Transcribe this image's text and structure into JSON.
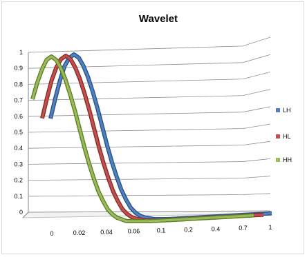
{
  "chart_data": {
    "type": "line",
    "title": "Wavelet",
    "xlabel": "",
    "ylabel": "",
    "ylim": [
      0,
      1
    ],
    "y_ticks": [
      "0",
      "0.1",
      "0.2",
      "0.3",
      "0.4",
      "0.5",
      "0.6",
      "0.7",
      "0.8",
      "0.9",
      "1"
    ],
    "categories": [
      "0",
      "0.02",
      "0.04",
      "0.06",
      "0.1",
      "0.2",
      "0.4",
      "0.7",
      "1"
    ],
    "grid": true,
    "legend_position": "right",
    "series": [
      {
        "name": "LH",
        "color": "#4f81bd",
        "dark_color": "#2b5289",
        "x": [
          0.0,
          0.02,
          0.04,
          0.06,
          0.08,
          0.1,
          0.12,
          0.14,
          0.16,
          0.18,
          0.2,
          0.22,
          0.24,
          0.26,
          0.28,
          0.3,
          0.32,
          0.34,
          0.36,
          0.38,
          0.4,
          0.44,
          0.5,
          1.0,
          2.0,
          3.0,
          4.0,
          5.0,
          6.0,
          7.0,
          8.0
        ],
        "y": [
          0.61,
          0.73,
          0.84,
          0.93,
          0.98,
          1.0,
          0.98,
          0.93,
          0.86,
          0.77,
          0.67,
          0.56,
          0.45,
          0.35,
          0.26,
          0.18,
          0.12,
          0.07,
          0.04,
          0.02,
          0.01,
          0.0,
          0.0,
          0.0,
          0.0,
          0.0,
          0.0,
          0.0,
          0.0,
          0.0,
          0.0
        ]
      },
      {
        "name": "HL",
        "color": "#c0504d",
        "dark_color": "#8b2c2a",
        "x": [
          0.0,
          0.02,
          0.04,
          0.06,
          0.08,
          0.1,
          0.12,
          0.14,
          0.16,
          0.18,
          0.2,
          0.22,
          0.24,
          0.26,
          0.28,
          0.3,
          0.32,
          0.34,
          0.36,
          0.38,
          0.4,
          0.44,
          0.5,
          1.0,
          2.0,
          3.0,
          4.0,
          5.0,
          6.0,
          7.0,
          8.0
        ],
        "y": [
          0.62,
          0.74,
          0.85,
          0.93,
          0.98,
          1.0,
          0.98,
          0.93,
          0.86,
          0.77,
          0.67,
          0.56,
          0.45,
          0.35,
          0.26,
          0.18,
          0.12,
          0.07,
          0.04,
          0.02,
          0.01,
          0.0,
          0.0,
          0.0,
          0.0,
          0.0,
          0.0,
          0.0,
          0.0,
          0.0,
          0.0
        ]
      },
      {
        "name": "HH",
        "color": "#9bbb59",
        "dark_color": "#5f7f2a",
        "x": [
          0.0,
          0.02,
          0.04,
          0.06,
          0.08,
          0.1,
          0.12,
          0.14,
          0.16,
          0.18,
          0.2,
          0.22,
          0.24,
          0.26,
          0.28,
          0.3,
          0.32,
          0.34,
          0.36,
          0.38,
          0.4,
          0.44,
          0.5,
          1.0,
          2.0,
          3.0,
          4.0,
          5.0,
          6.0,
          7.0,
          8.0
        ],
        "y": [
          0.74,
          0.84,
          0.92,
          0.98,
          1.0,
          0.98,
          0.93,
          0.86,
          0.77,
          0.67,
          0.56,
          0.45,
          0.35,
          0.26,
          0.18,
          0.12,
          0.07,
          0.04,
          0.02,
          0.01,
          0.0,
          0.0,
          0.0,
          0.0,
          0.0,
          0.0,
          0.0,
          0.0,
          0.0,
          0.0,
          0.0
        ]
      }
    ]
  }
}
